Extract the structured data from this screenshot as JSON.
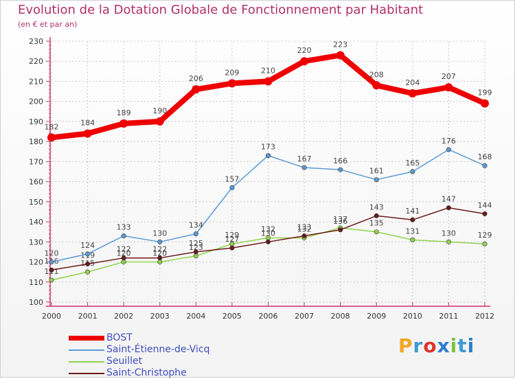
{
  "title": "Evolution de la Dotation Globale de Fonctionnement par Habitant",
  "subtitle": "(en € et par an)",
  "logo": {
    "text": "Proxiti",
    "colors": [
      "#f5a623",
      "#3c9bd6",
      "#e0342b",
      "#2a7fd0",
      "#7dc23a",
      "#3c9bd6",
      "#2a7fd0"
    ]
  },
  "chart_data": {
    "type": "line",
    "x": [
      "2000",
      "2001",
      "2002",
      "2003",
      "2004",
      "2005",
      "2006",
      "2007",
      "2008",
      "2009",
      "2010",
      "2011",
      "2012"
    ],
    "ylim": [
      100,
      230
    ],
    "yticks": [
      100,
      110,
      120,
      130,
      140,
      150,
      160,
      170,
      180,
      190,
      200,
      210,
      220,
      230
    ],
    "grid": true,
    "legend_position": "bottom-left",
    "series": [
      {
        "name": "BOST",
        "color": "#ee0000",
        "values": [
          182,
          184,
          189,
          190,
          206,
          209,
          210,
          220,
          223,
          208,
          204,
          207,
          199
        ]
      },
      {
        "name": "Saint-Étienne-de-Vicq",
        "color": "#5b9bd5",
        "values": [
          120,
          124,
          133,
          130,
          134,
          157,
          173,
          167,
          166,
          161,
          165,
          176,
          168
        ]
      },
      {
        "name": "Seuillet",
        "color": "#8fd34a",
        "values": [
          111,
          115,
          120,
          120,
          123,
          129,
          132,
          132,
          137,
          135,
          131,
          130,
          129
        ]
      },
      {
        "name": "Saint-Christophe",
        "color": "#6b1a1a",
        "values": [
          116,
          119,
          122,
          122,
          125,
          127,
          130,
          133,
          136,
          143,
          141,
          147,
          144
        ]
      }
    ]
  }
}
